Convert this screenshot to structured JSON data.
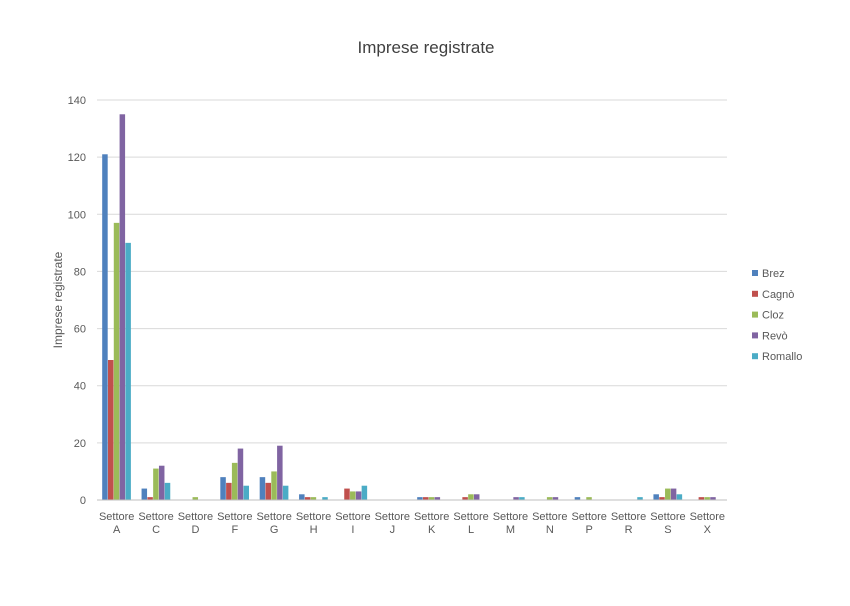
{
  "chart_data": {
    "type": "bar",
    "title": "Imprese registrate",
    "xlabel": "",
    "ylabel": "Imprese registrate",
    "ylim": [
      0,
      140
    ],
    "yticks": [
      0,
      20,
      40,
      60,
      80,
      100,
      120,
      140
    ],
    "grid": true,
    "legend_position": "right",
    "categories": [
      [
        "Settore",
        "A"
      ],
      [
        "Settore",
        "C"
      ],
      [
        "Settore",
        "D"
      ],
      [
        "Settore",
        "F"
      ],
      [
        "Settore",
        "G"
      ],
      [
        "Settore",
        "H"
      ],
      [
        "Settore",
        "I"
      ],
      [
        "Settore",
        "J"
      ],
      [
        "Settore",
        "K"
      ],
      [
        "Settore",
        "L"
      ],
      [
        "Settore",
        "M"
      ],
      [
        "Settore",
        "N"
      ],
      [
        "Settore",
        "P"
      ],
      [
        "Settore",
        "R"
      ],
      [
        "Settore",
        "S"
      ],
      [
        "Settore",
        "X"
      ]
    ],
    "series": [
      {
        "name": "Brez",
        "color": "#4f81bd",
        "values": [
          121,
          4,
          0,
          8,
          8,
          2,
          0,
          0,
          1,
          0,
          0,
          0,
          1,
          0,
          2,
          0
        ]
      },
      {
        "name": "Cagnò",
        "color": "#c0504d",
        "values": [
          49,
          1,
          0,
          6,
          6,
          1,
          4,
          0,
          1,
          1,
          0,
          0,
          0,
          0,
          1,
          1
        ]
      },
      {
        "name": "Cloz",
        "color": "#9bbb59",
        "values": [
          97,
          11,
          1,
          13,
          10,
          1,
          3,
          0,
          1,
          2,
          0,
          1,
          1,
          0,
          4,
          1
        ]
      },
      {
        "name": "Revò",
        "color": "#8064a2",
        "values": [
          135,
          12,
          0,
          18,
          19,
          0,
          3,
          0,
          1,
          2,
          1,
          1,
          0,
          0,
          4,
          1
        ]
      },
      {
        "name": "Romallo",
        "color": "#4bacc6",
        "values": [
          90,
          6,
          0,
          5,
          5,
          1,
          5,
          0,
          0,
          0,
          1,
          0,
          0,
          1,
          2,
          0
        ]
      }
    ]
  }
}
